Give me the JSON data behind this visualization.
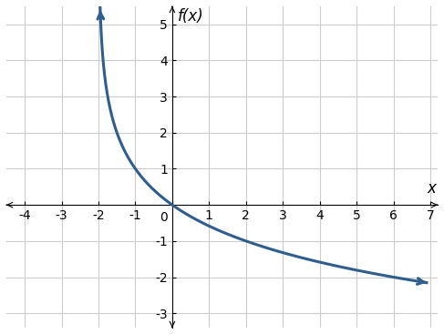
{
  "title": "f(x)",
  "xlabel": "x",
  "asymptote": -2,
  "A": -1.4426950408889634,
  "B": 1.0,
  "xlim": [
    -4.5,
    7.2
  ],
  "ylim": [
    -3.4,
    5.5
  ],
  "xticks": [
    -4,
    -3,
    -2,
    -1,
    0,
    1,
    2,
    3,
    4,
    5,
    6,
    7
  ],
  "yticks": [
    -3,
    -2,
    -1,
    1,
    2,
    3,
    4,
    5
  ],
  "curve_color": "#2E5D8E",
  "curve_linewidth": 2.2,
  "grid_color": "#CCCCCC",
  "background_color": "#FFFFFF",
  "arrow_color": "#000000",
  "tick_fontsize": 10,
  "label_fontsize": 12
}
